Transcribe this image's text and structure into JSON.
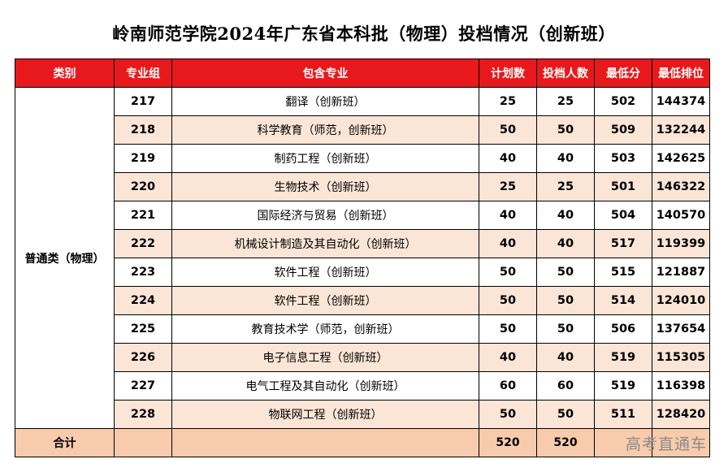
{
  "title": "岭南师范学院2024年广东省本科批（物理）投档情况（创新班）",
  "headers": [
    "类别",
    "专业组",
    "包含专业",
    "计划数",
    "投档人数",
    "最低分",
    "最低排位"
  ],
  "category": "普通类（物理）",
  "rows": [
    {
      "group": "217",
      "major": "翻译（创新班）",
      "plan": "25",
      "admitted": "25",
      "min_score": "502",
      "min_rank": "144374"
    },
    {
      "group": "218",
      "major": "科学教育（师范，创新班）",
      "plan": "50",
      "admitted": "50",
      "min_score": "509",
      "min_rank": "132244"
    },
    {
      "group": "219",
      "major": "制药工程（创新班）",
      "plan": "40",
      "admitted": "40",
      "min_score": "503",
      "min_rank": "142625"
    },
    {
      "group": "220",
      "major": "生物技术（创新班）",
      "plan": "25",
      "admitted": "25",
      "min_score": "501",
      "min_rank": "146322"
    },
    {
      "group": "221",
      "major": "国际经济与贸易（创新班）",
      "plan": "40",
      "admitted": "40",
      "min_score": "504",
      "min_rank": "140570"
    },
    {
      "group": "222",
      "major": "机械设计制造及其自动化（创新班）",
      "plan": "40",
      "admitted": "40",
      "min_score": "517",
      "min_rank": "119399"
    },
    {
      "group": "223",
      "major": "软件工程（创新班）",
      "plan": "50",
      "admitted": "50",
      "min_score": "515",
      "min_rank": "121887"
    },
    {
      "group": "224",
      "major": "软件工程（创新班）",
      "plan": "50",
      "admitted": "50",
      "min_score": "514",
      "min_rank": "124010"
    },
    {
      "group": "225",
      "major": "教育技术学（师范，创新班）",
      "plan": "50",
      "admitted": "50",
      "min_score": "506",
      "min_rank": "137654"
    },
    {
      "group": "226",
      "major": "电子信息工程（创新班）",
      "plan": "40",
      "admitted": "40",
      "min_score": "519",
      "min_rank": "115305"
    },
    {
      "group": "227",
      "major": "电气工程及其自动化（创新班）",
      "plan": "60",
      "admitted": "60",
      "min_score": "519",
      "min_rank": "116398"
    },
    {
      "group": "228",
      "major": "物联网工程（创新班）",
      "plan": "50",
      "admitted": "50",
      "min_score": "511",
      "min_rank": "128420"
    }
  ],
  "total": {
    "label": "合计",
    "plan": "520",
    "admitted": "520"
  },
  "watermark": "高考直通车",
  "colors": {
    "header_bg": "#e8191c",
    "shade_row": "#fbe5d6",
    "total_row": "#f8cbad"
  }
}
